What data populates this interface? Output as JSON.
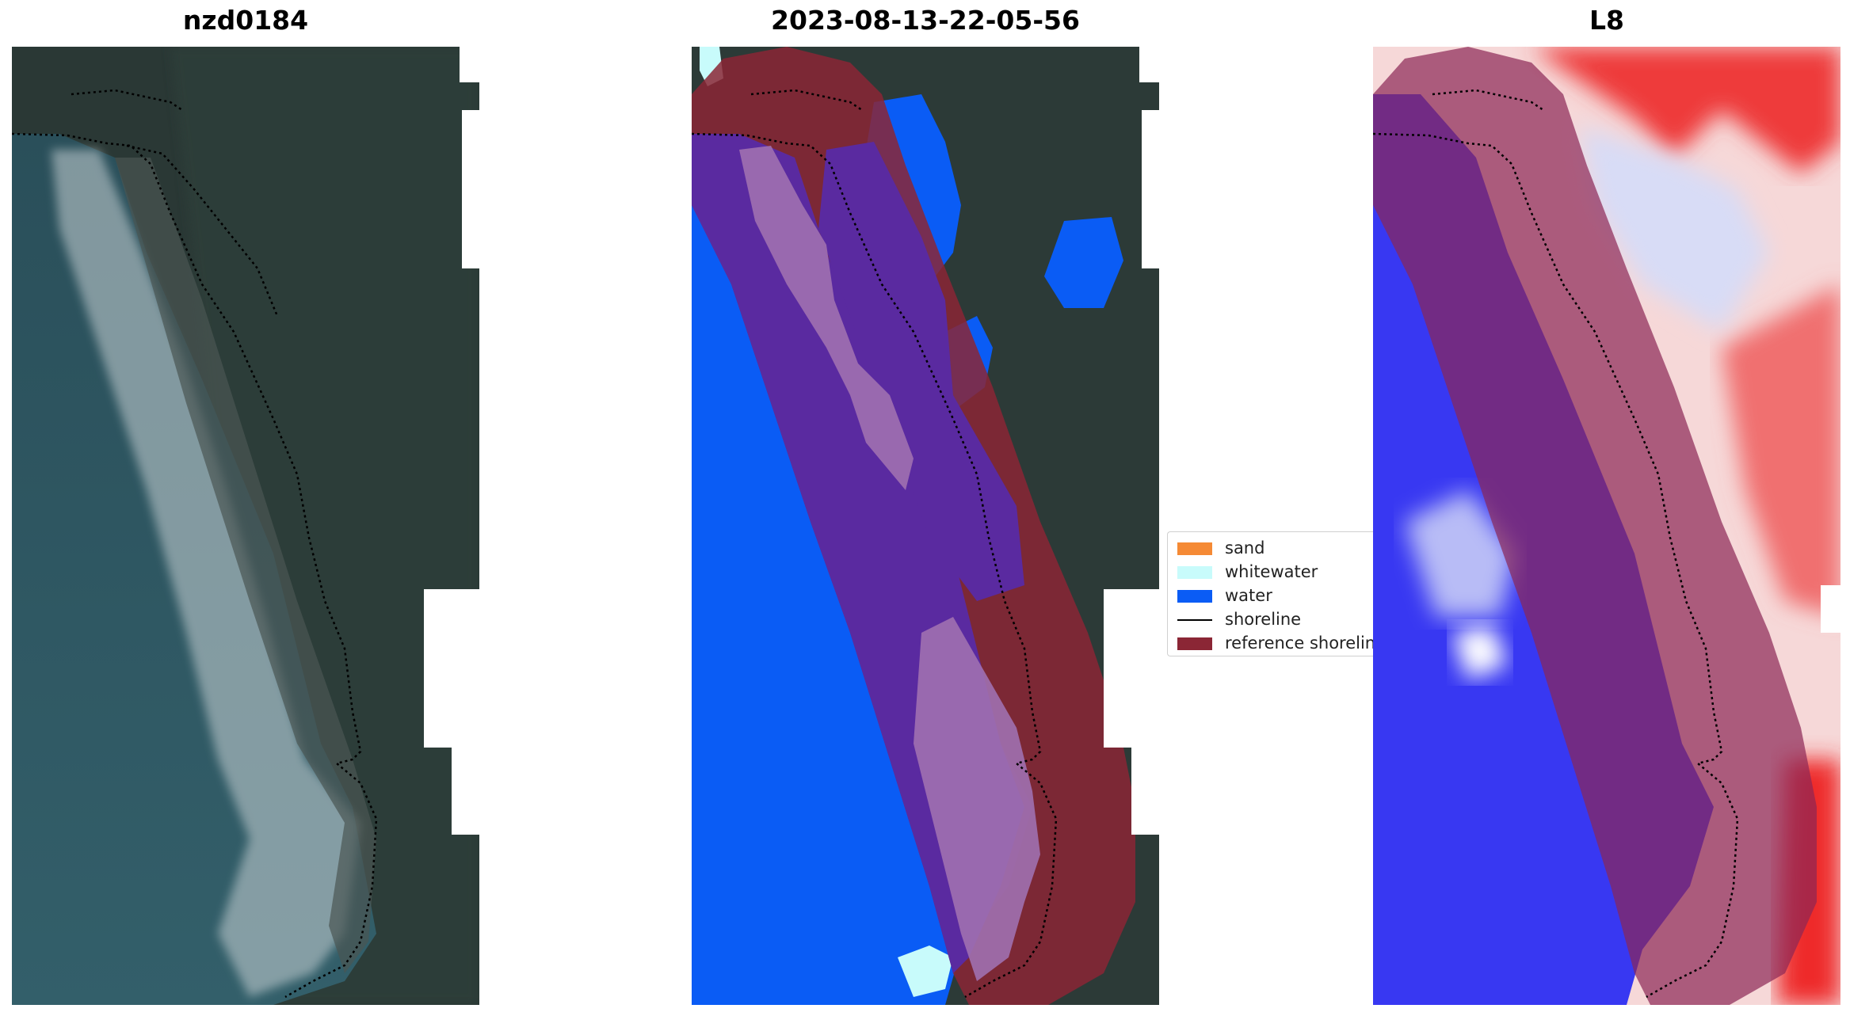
{
  "titles": {
    "panel1": "nzd0184",
    "panel2": "2023-08-13-22-05-56",
    "panel3": "L8"
  },
  "legend": {
    "items": [
      {
        "label": "sand",
        "color": "#f58a35",
        "kind": "patch"
      },
      {
        "label": "whitewater",
        "color": "#c8fbfb",
        "kind": "patch"
      },
      {
        "label": "water",
        "color": "#0a5cf5",
        "kind": "patch"
      },
      {
        "label": "shoreline",
        "color": "#000000",
        "kind": "line"
      },
      {
        "label": "reference shoreline",
        "color": "#8b2635",
        "kind": "patch"
      }
    ]
  },
  "colors": {
    "land": "#2c3a38",
    "sea": "#2f5c66",
    "surf": "#c9d3d6",
    "water_class": "#0a5cf5",
    "reference_buffer": "#8b2635",
    "index_water": "#3a3af0",
    "index_land": "#f03a3a"
  }
}
